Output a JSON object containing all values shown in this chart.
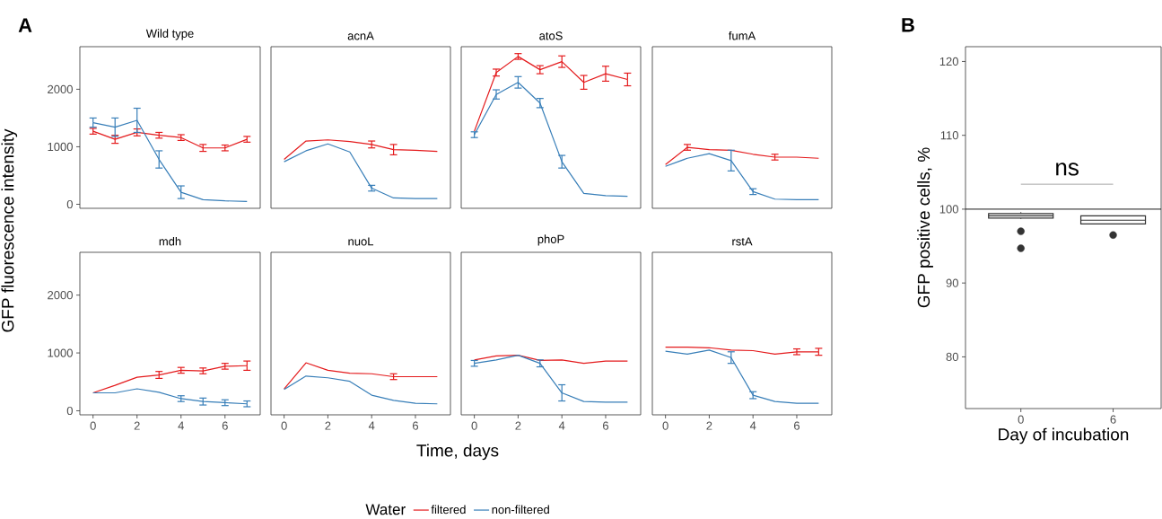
{
  "chart_data": [
    {
      "type": "line",
      "title": "Wild type",
      "ylabel": "GFP fluorescence intensity",
      "annotations": [
        "A"
      ],
      "legend": "bottom",
      "legend_title": "Water",
      "tick_labels": "y",
      "x": [
        0,
        1,
        2,
        3,
        4,
        5,
        6,
        7
      ],
      "xlim": [
        -0.6,
        7.6
      ],
      "ylim": [
        -70,
        2740
      ],
      "xticks": [
        0,
        2,
        4,
        6
      ],
      "yticks": [
        0,
        1000,
        2000
      ],
      "series": [
        {
          "name": "filtered",
          "color": "#e41a1c",
          "values": [
            1270,
            1130,
            1250,
            1200,
            1160,
            980,
            980,
            1130
          ],
          "errors": [
            50,
            70,
            60,
            50,
            50,
            60,
            50,
            50
          ]
        },
        {
          "name": "non-filtered",
          "color": "#377eb8",
          "values": [
            1420,
            1340,
            1460,
            780,
            210,
            80,
            60,
            50
          ],
          "errors": [
            80,
            160,
            210,
            150,
            110,
            null,
            null,
            null
          ]
        }
      ]
    },
    {
      "type": "line",
      "title": "acnA",
      "tick_labels": false,
      "x": [
        0,
        1,
        2,
        3,
        4,
        5,
        6,
        7
      ],
      "xlim": [
        -0.6,
        7.6
      ],
      "ylim": [
        -70,
        2740
      ],
      "xticks": [
        0,
        2,
        4,
        6
      ],
      "yticks": [
        0,
        1000,
        2000
      ],
      "series": [
        {
          "color": "#e41a1c",
          "values": [
            780,
            1100,
            1120,
            1090,
            1040,
            950,
            940,
            920
          ],
          "errors": [
            null,
            null,
            null,
            null,
            60,
            90,
            null,
            null
          ]
        },
        {
          "color": "#377eb8",
          "values": [
            740,
            930,
            1050,
            910,
            280,
            110,
            100,
            100
          ],
          "errors": [
            null,
            null,
            null,
            null,
            50,
            null,
            null,
            null
          ]
        }
      ]
    },
    {
      "type": "line",
      "title": "atoS",
      "tick_labels": false,
      "x": [
        0,
        1,
        2,
        3,
        4,
        5,
        6,
        7
      ],
      "xlim": [
        -0.6,
        7.6
      ],
      "ylim": [
        -70,
        2740
      ],
      "xticks": [
        0,
        2,
        4,
        6
      ],
      "yticks": [
        0,
        1000,
        2000
      ],
      "series": [
        {
          "color": "#e41a1c",
          "values": [
            1270,
            2290,
            2570,
            2340,
            2480,
            2120,
            2270,
            2170
          ],
          "errors": [
            null,
            60,
            50,
            70,
            100,
            120,
            130,
            110
          ]
        },
        {
          "color": "#377eb8",
          "values": [
            1210,
            1910,
            2120,
            1760,
            740,
            190,
            150,
            140
          ],
          "errors": [
            50,
            80,
            100,
            80,
            110,
            null,
            null,
            null
          ]
        }
      ]
    },
    {
      "type": "line",
      "title": "fumA",
      "tick_labels": false,
      "x": [
        0,
        1,
        2,
        3,
        4,
        5,
        6,
        7
      ],
      "xlim": [
        -0.6,
        7.6
      ],
      "ylim": [
        -70,
        2740
      ],
      "xticks": [
        0,
        2,
        4,
        6
      ],
      "yticks": [
        0,
        1000,
        2000
      ],
      "series": [
        {
          "color": "#e41a1c",
          "values": [
            690,
            990,
            950,
            940,
            870,
            820,
            820,
            800
          ],
          "errors": [
            null,
            50,
            null,
            null,
            null,
            50,
            null,
            null
          ]
        },
        {
          "color": "#377eb8",
          "values": [
            660,
            800,
            880,
            760,
            220,
            90,
            80,
            80
          ],
          "errors": [
            null,
            null,
            null,
            180,
            50,
            null,
            null,
            null
          ]
        }
      ]
    },
    {
      "type": "line",
      "title": "mdh",
      "x": [
        0,
        1,
        2,
        3,
        4,
        5,
        6,
        7
      ],
      "xlim": [
        -0.6,
        7.6
      ],
      "ylim": [
        -70,
        2740
      ],
      "xticks": [
        0,
        2,
        4,
        6
      ],
      "yticks": [
        0,
        1000,
        2000
      ],
      "series": [
        {
          "color": "#e41a1c",
          "values": [
            310,
            440,
            580,
            620,
            700,
            690,
            770,
            780
          ],
          "errors": [
            null,
            null,
            null,
            60,
            50,
            50,
            50,
            80
          ]
        },
        {
          "color": "#377eb8",
          "values": [
            310,
            310,
            380,
            320,
            210,
            160,
            140,
            120
          ],
          "errors": [
            null,
            null,
            null,
            null,
            50,
            60,
            50,
            50
          ]
        }
      ]
    },
    {
      "type": "line",
      "title": "nuoL",
      "xlabel": "Time, days",
      "tick_labels": "x",
      "x": [
        0,
        1,
        2,
        3,
        4,
        5,
        6,
        7
      ],
      "xlim": [
        -0.6,
        7.6
      ],
      "ylim": [
        -70,
        2740
      ],
      "xticks": [
        0,
        2,
        4,
        6
      ],
      "yticks": [
        0,
        1000,
        2000
      ],
      "series": [
        {
          "color": "#e41a1c",
          "values": [
            380,
            830,
            700,
            650,
            640,
            590,
            590,
            590
          ],
          "errors": [
            null,
            null,
            null,
            null,
            null,
            50,
            null,
            null
          ]
        },
        {
          "color": "#377eb8",
          "values": [
            370,
            600,
            570,
            510,
            270,
            180,
            130,
            120
          ]
        }
      ]
    },
    {
      "type": "line",
      "title": "phoP",
      "tick_labels": "x",
      "x": [
        0,
        1,
        2,
        3,
        4,
        5,
        6,
        7
      ],
      "xlim": [
        -0.6,
        7.6
      ],
      "ylim": [
        -70,
        2740
      ],
      "xticks": [
        0,
        2,
        4,
        6
      ],
      "yticks": [
        0,
        1000,
        2000
      ],
      "series": [
        {
          "color": "#e41a1c",
          "values": [
            880,
            950,
            960,
            870,
            880,
            820,
            860,
            860
          ]
        },
        {
          "color": "#377eb8",
          "values": [
            820,
            880,
            960,
            820,
            310,
            160,
            150,
            150
          ],
          "errors": [
            50,
            null,
            null,
            60,
            140,
            null,
            null,
            null
          ]
        }
      ]
    },
    {
      "type": "line",
      "title": "rstA",
      "tick_labels": "x",
      "x": [
        0,
        1,
        2,
        3,
        4,
        5,
        6,
        7
      ],
      "xlim": [
        -0.6,
        7.6
      ],
      "ylim": [
        -70,
        2740
      ],
      "xticks": [
        0,
        2,
        4,
        6
      ],
      "yticks": [
        0,
        1000,
        2000
      ],
      "series": [
        {
          "color": "#e41a1c",
          "values": [
            1100,
            1100,
            1090,
            1050,
            1040,
            980,
            1020,
            1020
          ],
          "errors": [
            null,
            null,
            null,
            null,
            null,
            null,
            50,
            60
          ]
        },
        {
          "color": "#377eb8",
          "values": [
            1030,
            980,
            1050,
            920,
            270,
            160,
            130,
            130
          ],
          "errors": [
            null,
            null,
            null,
            100,
            60,
            null,
            null,
            null
          ]
        }
      ]
    },
    {
      "type": "box",
      "xlabel": "Day of incubation",
      "ylabel": "GFP positive cells, %",
      "annotations": [
        "B",
        "ns"
      ],
      "categories": [
        "0",
        "6"
      ],
      "ylim": [
        73,
        122
      ],
      "yticks": [
        80,
        90,
        100,
        110,
        120
      ],
      "ref_lines": [
        {
          "axis": "y",
          "value": 100,
          "color": "#000000"
        }
      ],
      "series": [
        {
          "color": "#333333",
          "boxes": [
            {
              "low": 98.7,
              "q1": 98.8,
              "median": 99.1,
              "q3": 99.4,
              "high": 99.6,
              "outliers": [
                97.0,
                94.7
              ]
            },
            {
              "low": 98.0,
              "q1": 98.0,
              "median": 98.5,
              "q3": 99.1,
              "high": 99.1,
              "outliers": [
                96.5
              ]
            }
          ]
        }
      ]
    }
  ]
}
